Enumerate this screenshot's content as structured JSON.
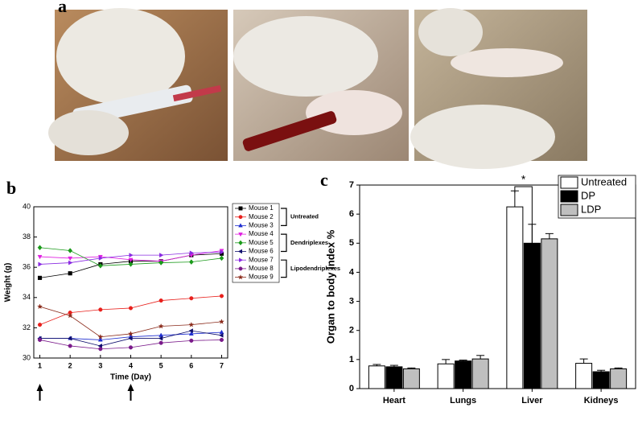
{
  "figure": {
    "panels": [
      "a",
      "b",
      "c"
    ]
  },
  "chart_data": [
    {
      "type": "line",
      "xlabel": "Time (Day)",
      "ylabel": "Weight (g)",
      "x": [
        1,
        2,
        3,
        4,
        5,
        6,
        7
      ],
      "xlim": [
        0.8,
        7.2
      ],
      "xticks": [
        1,
        2,
        3,
        4,
        5,
        6,
        7
      ],
      "ylim": [
        30,
        40
      ],
      "yticks": [
        30,
        32,
        34,
        36,
        38,
        40
      ],
      "groups": [
        "Untreated",
        "Dendriplexes",
        "Lipodendriplexes"
      ],
      "arrow_days": [
        1,
        4
      ],
      "series": [
        {
          "name": "Mouse 1",
          "color": "#000000",
          "marker": "square",
          "values": [
            35.3,
            35.6,
            36.2,
            36.4,
            36.4,
            36.8,
            36.9
          ]
        },
        {
          "name": "Mouse 2",
          "color": "#e8201c",
          "marker": "circle",
          "values": [
            32.2,
            33.0,
            33.2,
            33.3,
            33.8,
            33.95,
            34.1
          ]
        },
        {
          "name": "Mouse 3",
          "color": "#1f2fd0",
          "marker": "triangle-up",
          "values": [
            31.3,
            31.3,
            31.2,
            31.4,
            31.5,
            31.6,
            31.7
          ]
        },
        {
          "name": "Mouse 4",
          "color": "#e020e0",
          "marker": "triangle-down",
          "values": [
            36.7,
            36.6,
            36.7,
            36.5,
            36.4,
            36.8,
            37.1
          ]
        },
        {
          "name": "Mouse 5",
          "color": "#1a9a1a",
          "marker": "diamond",
          "values": [
            37.3,
            37.1,
            36.1,
            36.2,
            36.3,
            36.35,
            36.6
          ]
        },
        {
          "name": "Mouse 6",
          "color": "#10106e",
          "marker": "triangle-left",
          "values": [
            31.3,
            31.3,
            30.8,
            31.3,
            31.3,
            31.8,
            31.5
          ]
        },
        {
          "name": "Mouse 7",
          "color": "#8a2be2",
          "marker": "triangle-right",
          "values": [
            36.2,
            36.3,
            36.6,
            36.8,
            36.8,
            36.95,
            37.0
          ]
        },
        {
          "name": "Mouse 8",
          "color": "#7a1a8a",
          "marker": "circle",
          "values": [
            31.2,
            30.8,
            30.6,
            30.7,
            31.0,
            31.15,
            31.2
          ]
        },
        {
          "name": "Mouse 9",
          "color": "#8a2a1a",
          "marker": "star",
          "values": [
            33.4,
            32.8,
            31.4,
            31.6,
            32.1,
            32.2,
            32.4
          ]
        }
      ]
    },
    {
      "type": "bar",
      "ylabel": "Organ to body index %",
      "categories": [
        "Heart",
        "Lungs",
        "Liver",
        "Kidneys"
      ],
      "ylim": [
        0,
        7
      ],
      "yticks": [
        0,
        1,
        2,
        3,
        4,
        5,
        6,
        7
      ],
      "significance": "*",
      "series": [
        {
          "name": "Untreated",
          "color": "#ffffff",
          "values": [
            0.78,
            0.85,
            6.25,
            0.87
          ],
          "errors": [
            0.05,
            0.15,
            0.55,
            0.15
          ]
        },
        {
          "name": "DP",
          "color": "#000000",
          "values": [
            0.75,
            0.95,
            5.0,
            0.58
          ],
          "errors": [
            0.05,
            0.03,
            0.65,
            0.05
          ]
        },
        {
          "name": "LDP",
          "color": "#bfbfbf",
          "values": [
            0.68,
            1.02,
            5.15,
            0.68
          ],
          "errors": [
            0.03,
            0.12,
            0.18,
            0.03
          ]
        }
      ]
    }
  ]
}
